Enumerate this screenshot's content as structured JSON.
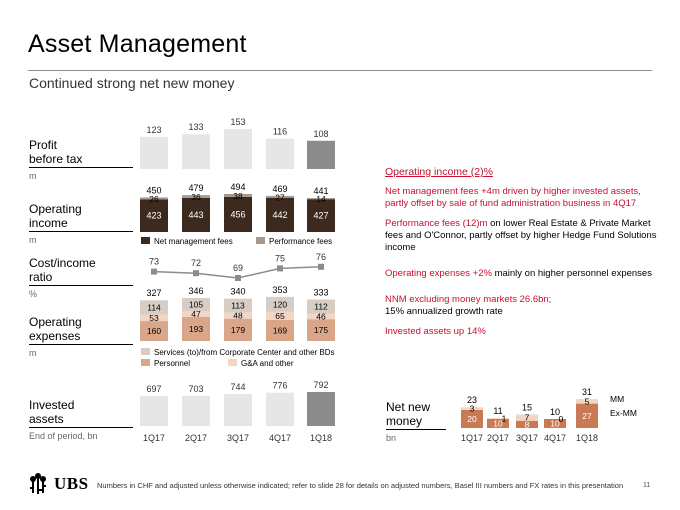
{
  "page": {
    "title": "Asset Management",
    "subtitle": "Continued strong net new money",
    "footnote": "Numbers in CHF and adjusted unless otherwise indicated; refer to slide 28 for details on adjusted numbers, Basel III numbers and FX rates in this presentation",
    "page_number": "11",
    "logo_text": "UBS"
  },
  "row_labels": {
    "profit": {
      "title": "Profit\nbefore tax",
      "unit": "m"
    },
    "income": {
      "title": "Operating\nincome",
      "unit": "m"
    },
    "cost": {
      "title": "Cost/income\nratio",
      "unit": "%"
    },
    "expenses": {
      "title": "Operating\nexpenses",
      "unit": "m"
    },
    "assets": {
      "title": "Invested\nassets",
      "unit": "End of period, bn"
    },
    "nnm": {
      "title": "Net new\nmoney",
      "unit": "bn"
    }
  },
  "legends": {
    "net_management_fees": "Net management fees",
    "performance_fees": "Performance fees",
    "services": "Services (to)/from Corporate Center and other BDs",
    "personnel": "Personnel",
    "ga_other": "G&A and other",
    "mm": "MM",
    "ex_mm": "Ex-MM"
  },
  "colors": {
    "light_gray": "#e6e6e6",
    "mid_gray": "#b3a9a2",
    "dark_gray": "#8c8c8c",
    "dark_brown": "#3d2a1e",
    "tan": "#a8988b",
    "taupe_light": "#d8cdc4",
    "peach_light": "#f2d5c2",
    "salmon": "#d9a68a",
    "terracotta": "#c97a55",
    "accent_red": "#c8102e",
    "line_gray": "#8c8c8c"
  },
  "commentary": {
    "heading": "Operating income (2)%",
    "p1": "Net management fees +4m driven by higher invested assets, partly offset by sale of fund administration business in 4Q17",
    "p2_lead": "Performance fees (12)m",
    "p2_rest": " on lower Real Estate & Private Market fees and O'Connor, partly offset by higher Hedge Fund Solutions income",
    "p3_lead": "Operating expenses +2%",
    "p3_rest": " mainly on higher personnel expenses",
    "p4_line1": "NNM excluding money markets 26.6bn;",
    "p4_line2": "15% annualized growth rate",
    "p5": "Invested assets up 14%"
  },
  "chart_data": [
    {
      "type": "bar",
      "name": "profit_before_tax",
      "categories": [
        "1Q17",
        "2Q17",
        "3Q17",
        "4Q17",
        "1Q18"
      ],
      "values": [
        123,
        133,
        153,
        116,
        108
      ]
    },
    {
      "type": "bar",
      "name": "operating_income",
      "stacked": true,
      "categories": [
        "1Q17",
        "2Q17",
        "3Q17",
        "4Q17",
        "1Q18"
      ],
      "totals": [
        450,
        479,
        494,
        469,
        441
      ],
      "series": [
        {
          "name": "Net management fees",
          "values": [
            423,
            443,
            456,
            442,
            427
          ]
        },
        {
          "name": "Performance fees",
          "values": [
            26,
            36,
            38,
            27,
            14
          ]
        }
      ]
    },
    {
      "type": "line",
      "name": "cost_income_ratio",
      "categories": [
        "1Q17",
        "2Q17",
        "3Q17",
        "4Q17",
        "1Q18"
      ],
      "values": [
        73,
        72,
        69,
        75,
        76
      ]
    },
    {
      "type": "bar",
      "name": "operating_expenses",
      "stacked": true,
      "categories": [
        "1Q17",
        "2Q17",
        "3Q17",
        "4Q17",
        "1Q18"
      ],
      "totals": [
        327,
        346,
        340,
        353,
        333
      ],
      "series": [
        {
          "name": "Personnel",
          "values": [
            160,
            193,
            179,
            169,
            175
          ]
        },
        {
          "name": "G&A and other",
          "values": [
            53,
            47,
            48,
            65,
            46
          ]
        },
        {
          "name": "Services (to)/from Corporate Center and other BDs",
          "values": [
            114,
            105,
            113,
            120,
            112
          ]
        }
      ]
    },
    {
      "type": "bar",
      "name": "invested_assets",
      "categories": [
        "1Q17",
        "2Q17",
        "3Q17",
        "4Q17",
        "1Q18"
      ],
      "values": [
        697,
        703,
        744,
        776,
        792
      ]
    },
    {
      "type": "bar",
      "name": "net_new_money",
      "stacked": true,
      "categories": [
        "1Q17",
        "2Q17",
        "3Q17",
        "4Q17",
        "1Q18"
      ],
      "totals": [
        23,
        11,
        15,
        10,
        31
      ],
      "series": [
        {
          "name": "Ex-MM",
          "values": [
            20,
            10,
            8,
            10,
            27
          ]
        },
        {
          "name": "MM",
          "values": [
            3,
            1,
            7,
            0,
            5
          ]
        }
      ]
    }
  ]
}
